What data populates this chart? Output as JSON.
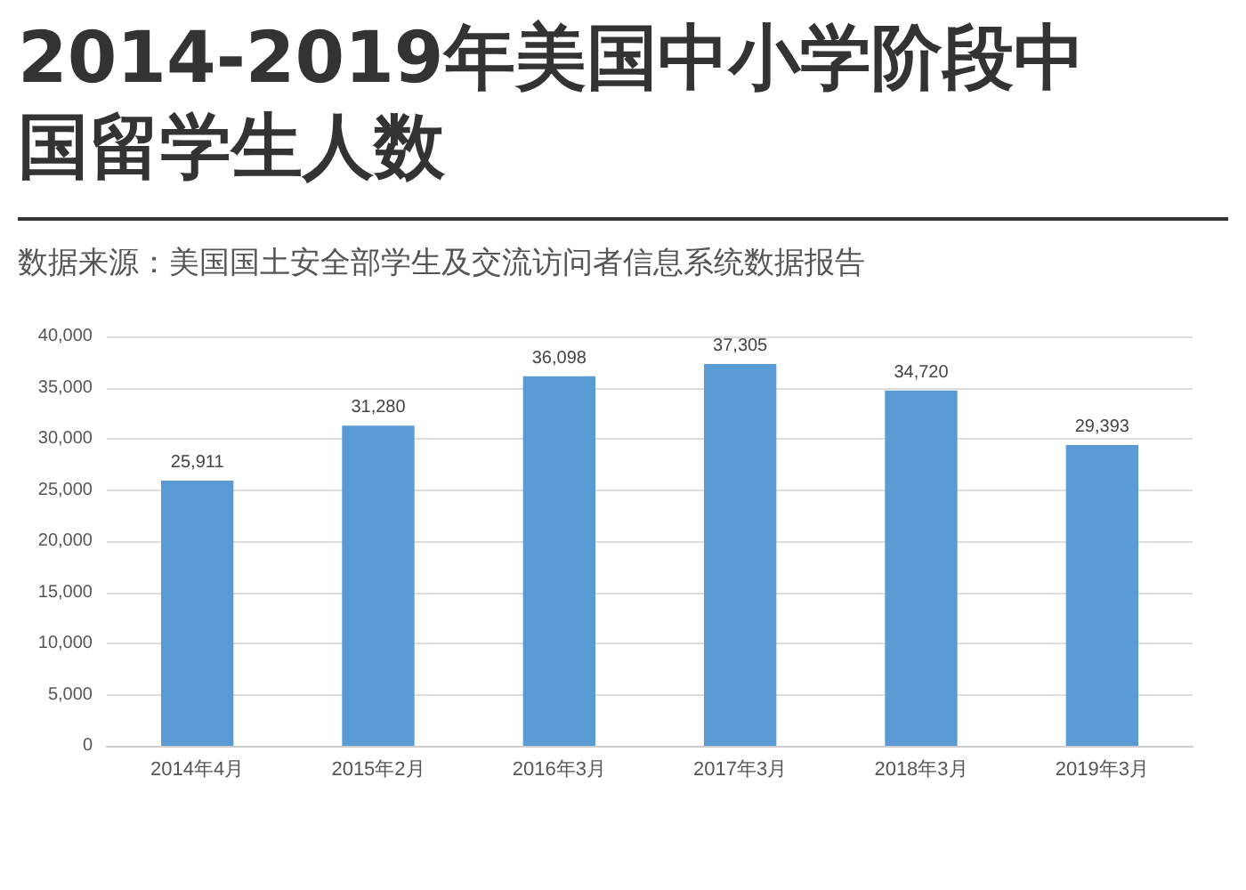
{
  "chart_data": {
    "type": "bar",
    "title": "2014-2019年美国中小学阶段中国留学生人数",
    "annotations": [
      "数据来源：美国国土安全部学生及交流访问者信息系统数据报告"
    ],
    "categories": [
      "2014年4月",
      "2015年2月",
      "2016年3月",
      "2017年3月",
      "2018年3月",
      "2019年3月"
    ],
    "values": [
      25911,
      31280,
      36098,
      37305,
      34720,
      29393
    ],
    "value_labels": [
      "25,911",
      "31,280",
      "36,098",
      "37,305",
      "34,720",
      "29,393"
    ],
    "color": "#5b9bd5",
    "ylim": [
      0,
      40000
    ],
    "yticks": [
      0,
      {
        "value": 5000,
        "label": "5,000"
      },
      {
        "value": 10000,
        "label": "10,000"
      },
      {
        "value": 15000,
        "label": "15,000"
      },
      {
        "value": 20000,
        "label": "20,000"
      },
      {
        "value": 25000,
        "label": "25,000"
      },
      {
        "value": 30000,
        "label": "30,000"
      },
      {
        "value": 35000,
        "label": "35,000"
      },
      {
        "value": 40000,
        "label": "40,000"
      }
    ],
    "grid": "y"
  }
}
